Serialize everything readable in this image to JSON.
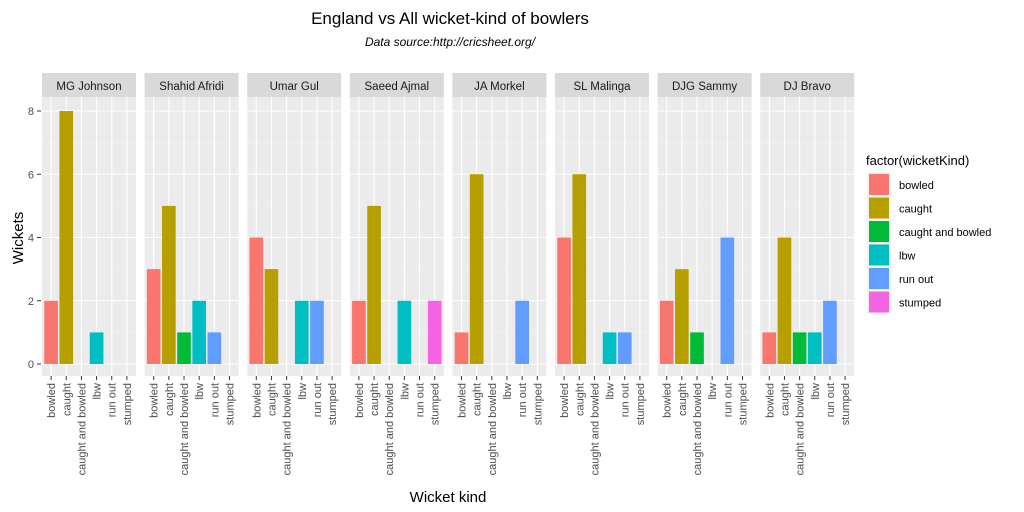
{
  "chart_data": {
    "type": "bar",
    "title": "England vs All wicket-kind of bowlers",
    "subtitle": "Data source:http://cricsheet.org/",
    "xlabel": "Wicket kind",
    "ylabel": "Wickets",
    "ylim": [
      0,
      8.4
    ],
    "yticks": [
      0,
      2,
      4,
      6,
      8
    ],
    "grid": true,
    "legend_position": "right",
    "legend_title": "factor(wicketKind)",
    "categories": [
      "bowled",
      "caught",
      "caught and bowled",
      "lbw",
      "run out",
      "stumped"
    ],
    "colors": {
      "bowled": "#F8766D",
      "caught": "#B79F00",
      "caught and bowled": "#00BA38",
      "lbw": "#00BFC4",
      "run out": "#619CFF",
      "stumped": "#F564E3"
    },
    "facets": [
      {
        "name": "MG Johnson",
        "values": {
          "bowled": 2,
          "caught": 8,
          "lbw": 1
        }
      },
      {
        "name": "Shahid Afridi",
        "values": {
          "bowled": 3,
          "caught": 5,
          "caught and bowled": 1,
          "lbw": 2,
          "run out": 1
        }
      },
      {
        "name": "Umar Gul",
        "values": {
          "bowled": 4,
          "caught": 3,
          "lbw": 2,
          "run out": 2
        }
      },
      {
        "name": "Saeed Ajmal",
        "values": {
          "bowled": 2,
          "caught": 5,
          "lbw": 2,
          "stumped": 2
        }
      },
      {
        "name": "JA Morkel",
        "values": {
          "bowled": 1,
          "caught": 6,
          "run out": 2
        }
      },
      {
        "name": "SL Malinga",
        "values": {
          "bowled": 4,
          "caught": 6,
          "lbw": 1,
          "run out": 1
        }
      },
      {
        "name": "DJG Sammy",
        "values": {
          "bowled": 2,
          "caught": 3,
          "caught and bowled": 1,
          "run out": 4
        }
      },
      {
        "name": "DJ Bravo",
        "values": {
          "bowled": 1,
          "caught": 4,
          "caught and bowled": 1,
          "lbw": 1,
          "run out": 2
        }
      }
    ]
  }
}
